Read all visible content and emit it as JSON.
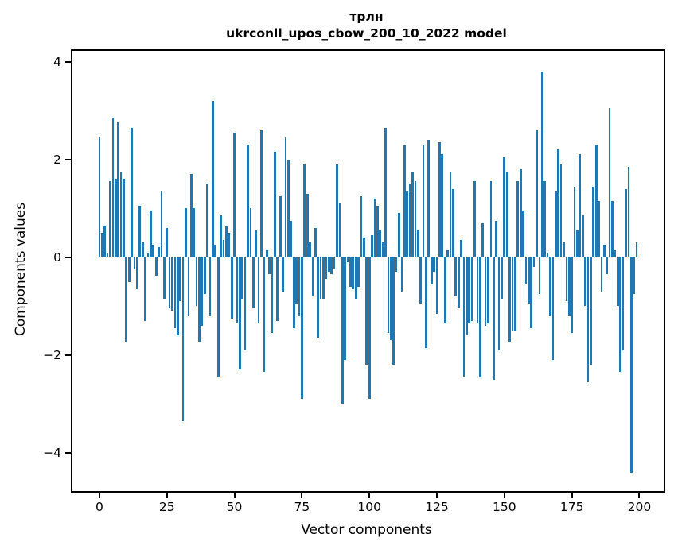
{
  "figure": {
    "background": "#ffffff"
  },
  "chart_data": {
    "type": "bar",
    "title": "трлн",
    "subtitle": "ukrconll_upos_cbow_200_10_2022 model",
    "xlabel": "Vector components",
    "ylabel": "Components values",
    "bar_color": "#1f77b4",
    "axis_color": "#000000",
    "grid": false,
    "legend": null,
    "xlim": [
      -10,
      209
    ],
    "ylim": [
      -4.78,
      4.22
    ],
    "x_ticks": [
      0,
      25,
      50,
      75,
      100,
      125,
      150,
      175,
      200
    ],
    "x_tick_labels": [
      "0",
      "25",
      "50",
      "75",
      "100",
      "125",
      "150",
      "175",
      "200"
    ],
    "y_ticks": [
      4,
      2,
      0,
      -2,
      -4
    ],
    "y_tick_labels": [
      "4",
      "2",
      "0",
      "−2",
      "−4"
    ],
    "x_values_are_indices": true,
    "values": [
      2.45,
      0.5,
      0.65,
      0.1,
      1.55,
      2.85,
      1.6,
      2.75,
      1.75,
      1.6,
      -1.75,
      -0.5,
      2.65,
      -0.25,
      -0.65,
      1.05,
      0.3,
      -1.3,
      0.1,
      0.95,
      0.25,
      -0.4,
      0.2,
      1.35,
      -0.85,
      0.6,
      -1.05,
      -1.1,
      -1.45,
      -1.6,
      -0.9,
      -3.35,
      1.0,
      -1.2,
      1.7,
      1.0,
      -1.0,
      -1.75,
      -1.4,
      -0.75,
      1.5,
      -1.2,
      3.2,
      0.25,
      -2.45,
      0.85,
      0.35,
      0.65,
      0.5,
      -1.25,
      2.55,
      -1.35,
      -2.3,
      -0.85,
      -1.9,
      2.3,
      1.0,
      -1.05,
      0.55,
      -1.35,
      2.6,
      -2.35,
      0.15,
      -0.35,
      -1.55,
      2.15,
      -1.3,
      1.25,
      -0.7,
      2.45,
      2.0,
      0.75,
      -1.45,
      -0.95,
      -1.2,
      -2.9,
      1.9,
      1.3,
      0.3,
      -0.8,
      0.6,
      -1.65,
      -0.85,
      -0.85,
      -0.45,
      -0.3,
      -0.35,
      -0.25,
      1.9,
      1.1,
      -3.0,
      -2.1,
      -0.1,
      -0.6,
      -0.65,
      -0.85,
      -0.6,
      1.25,
      0.4,
      -2.2,
      -2.9,
      0.45,
      1.2,
      1.05,
      0.55,
      0.3,
      2.65,
      -1.55,
      -1.7,
      -2.2,
      -0.3,
      0.9,
      -0.7,
      2.3,
      1.35,
      1.5,
      1.75,
      1.55,
      0.55,
      -0.95,
      2.3,
      -1.85,
      2.4,
      -0.55,
      -0.3,
      -1.15,
      2.35,
      2.1,
      -1.35,
      0.15,
      1.75,
      1.4,
      -0.8,
      -1.05,
      0.35,
      -2.45,
      -1.6,
      -1.35,
      -1.3,
      1.55,
      -1.35,
      -2.45,
      0.7,
      -1.4,
      -1.35,
      1.55,
      -2.5,
      0.75,
      -1.9,
      -0.85,
      2.05,
      1.75,
      -1.75,
      -1.5,
      -1.5,
      1.55,
      1.8,
      0.95,
      -0.55,
      -0.95,
      -1.45,
      -0.2,
      2.6,
      -0.75,
      3.8,
      1.55,
      0.1,
      -1.2,
      -2.1,
      1.35,
      2.2,
      1.9,
      0.3,
      -0.9,
      -1.2,
      -1.55,
      1.45,
      0.55,
      2.1,
      0.85,
      -1.0,
      -2.55,
      -2.2,
      1.45,
      2.3,
      1.15,
      -0.7,
      0.25,
      -0.35,
      3.05,
      1.15,
      0.15,
      -1.0,
      -2.35,
      -1.9,
      1.4,
      1.85,
      -4.4,
      -0.75,
      0.3
    ]
  }
}
